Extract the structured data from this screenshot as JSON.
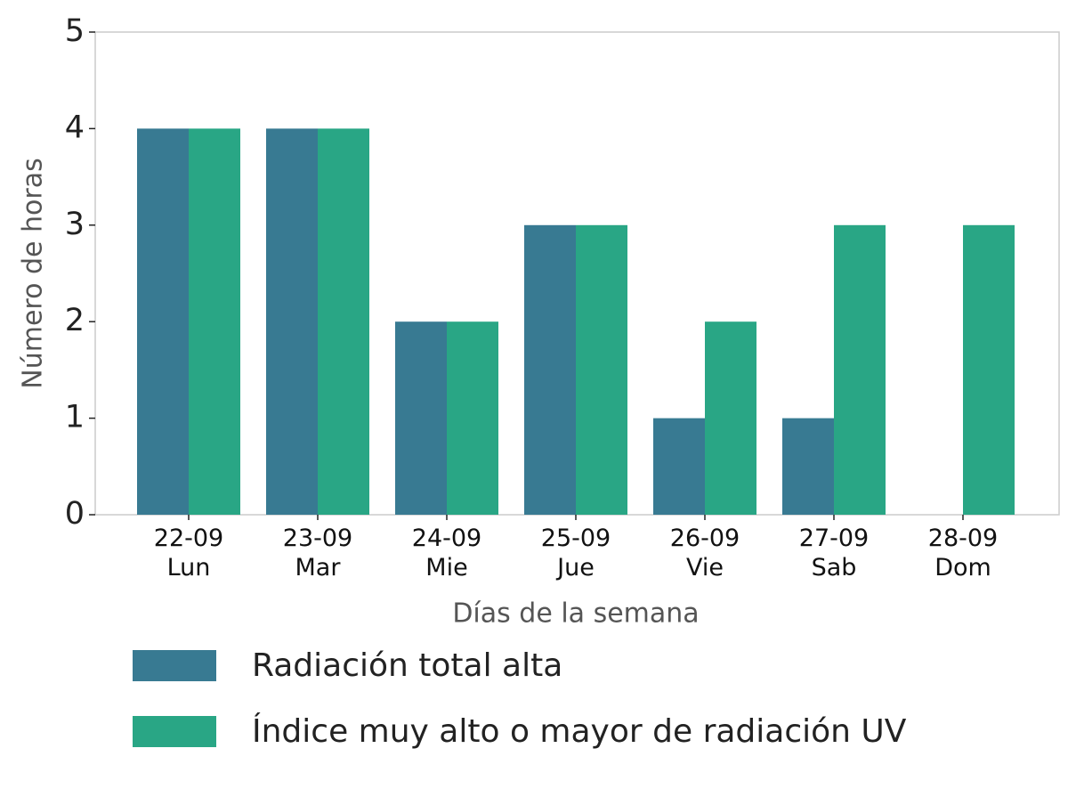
{
  "chart_data": {
    "type": "bar",
    "xlabel": "Días de la semana",
    "ylabel": "Número de horas",
    "categories": [
      "22-09\nLun",
      "23-09\nMar",
      "24-09\nMie",
      "25-09\nJue",
      "26-09\nVie",
      "27-09\nSab",
      "28-09\nDom"
    ],
    "series": [
      {
        "name": "Radiación total alta",
        "color": "#387a92",
        "values": [
          4,
          4,
          2,
          3,
          1,
          1,
          0
        ]
      },
      {
        "name": "Índice muy alto o mayor de radiación UV",
        "color": "#29a685",
        "values": [
          4,
          4,
          2,
          3,
          2,
          3,
          3
        ]
      }
    ],
    "ylim": [
      0,
      5
    ],
    "yticks": [
      0,
      1,
      2,
      3,
      4,
      5
    ],
    "grid": false,
    "legend": "bottom"
  }
}
